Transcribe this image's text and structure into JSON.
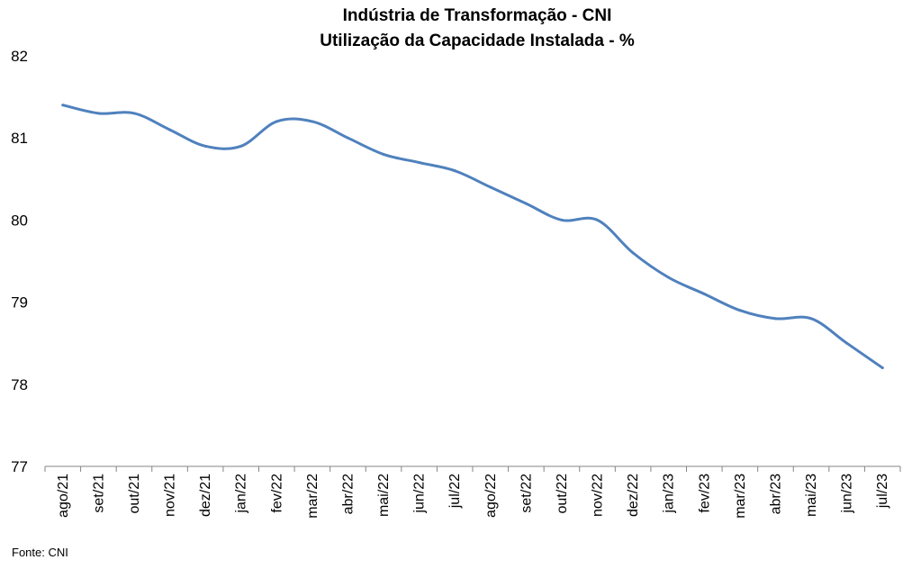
{
  "chart_data": {
    "type": "line",
    "title": "Indústria de Transformação - CNI",
    "subtitle": "Utilização da Capacidade Instalada - %",
    "categories": [
      "ago/21",
      "set/21",
      "out/21",
      "nov/21",
      "dez/21",
      "jan/22",
      "fev/22",
      "mar/22",
      "abr/22",
      "mai/22",
      "jun/22",
      "jul/22",
      "ago/22",
      "set/22",
      "out/22",
      "nov/22",
      "dez/22",
      "jan/23",
      "fev/23",
      "mar/23",
      "abr/23",
      "mai/23",
      "jun/23",
      "jul/23"
    ],
    "series": [
      {
        "values": [
          81.4,
          81.3,
          81.3,
          81.1,
          80.9,
          80.9,
          81.2,
          81.2,
          81.0,
          80.8,
          80.7,
          80.6,
          80.4,
          80.2,
          80.0,
          80.0,
          79.6,
          79.3,
          79.1,
          78.9,
          78.8,
          78.8,
          78.5,
          78.2
        ]
      }
    ],
    "ylim": [
      77,
      82
    ],
    "yticks": [
      77,
      78,
      79,
      80,
      81,
      82
    ],
    "grid": false,
    "legend": "none",
    "color": "#4f81bd"
  },
  "source": "Fonte: CNI"
}
